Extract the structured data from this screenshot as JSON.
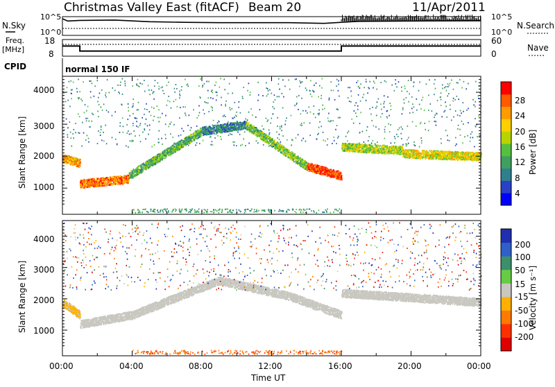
{
  "header": {
    "radar_name": "Christmas Valley East (fitACF)",
    "beam": "Beam 20",
    "date": "11/Apr/2011"
  },
  "panels": {
    "nsky": {
      "label": "N.Sky",
      "ticks": [
        "10^5",
        "10^0"
      ]
    },
    "nsearch": {
      "label": "N.Search",
      "ticks": [
        "10^5",
        "10^0"
      ]
    },
    "freq": {
      "label_line1": "Freq.",
      "label_line2": "[MHz]",
      "ticks": [
        "18",
        "8"
      ]
    },
    "nave": {
      "label": "Nave",
      "ticks": [
        "60",
        "0"
      ]
    },
    "cpid": {
      "label": "CPID",
      "value": "normal 150 IF"
    }
  },
  "power_panel": {
    "ylabel": "Slant Range [km]",
    "yticks": [
      "4000",
      "3000",
      "2000",
      "1000"
    ],
    "colorbar_label": "Power [dB]",
    "colorbar_ticks": [
      "28",
      "24",
      "20",
      "16",
      "12",
      "8",
      "4"
    ],
    "colors": [
      "#0000ff",
      "#2a40c8",
      "#2f7f8f",
      "#3f9f5f",
      "#55c040",
      "#b8d400",
      "#ffd000",
      "#ff9a00",
      "#ff5a00",
      "#ff0000"
    ]
  },
  "velocity_panel": {
    "ylabel": "Slant Range [km]",
    "yticks": [
      "4000",
      "3000",
      "2000",
      "1000"
    ],
    "colorbar_label": "Velocity [m s⁻¹]",
    "colorbar_ticks": [
      "200",
      "100",
      "50",
      "15",
      "-15",
      "-50",
      "-100",
      "-200"
    ],
    "colors": [
      "#1f2fb0",
      "#2f5fc8",
      "#3c8f6a",
      "#66cc44",
      "#c8c8c0",
      "#ffb000",
      "#ff7a00",
      "#ff3000",
      "#e00000"
    ]
  },
  "xaxis": {
    "label": "Time UT",
    "ticks": [
      "00:00",
      "04:00",
      "08:00",
      "12:00",
      "16:00",
      "20:00",
      "00:00"
    ]
  },
  "chart_data": [
    {
      "type": "line",
      "name": "N.Sky / N.Search",
      "x_hours": [
        0,
        0.3,
        1,
        3,
        5,
        7,
        9,
        11,
        13,
        15,
        16,
        17,
        20,
        24
      ],
      "log10_nsky": [
        4.8,
        4.1,
        4.3,
        4.4,
        3.9,
        3.7,
        3.6,
        3.6,
        3.6,
        3.4,
        3.7,
        4.0,
        4.1,
        4.2
      ],
      "yrange": [
        "10^0",
        "10^5"
      ]
    },
    {
      "type": "line",
      "name": "Freq. / Nave",
      "x_hours": [
        0,
        1,
        1,
        16,
        16,
        24
      ],
      "freq_mhz": [
        14.2,
        14.2,
        10.9,
        10.9,
        14.2,
        14.2
      ],
      "freq_range": [
        8,
        18
      ],
      "nave_range": [
        0,
        60
      ]
    },
    {
      "type": "heatmap",
      "name": "Power",
      "x_range_hours": [
        0,
        24
      ],
      "y_range_km": [
        180,
        4500
      ],
      "value_range_db": [
        0,
        30
      ],
      "bands": [
        {
          "x": [
            0.0,
            1.0
          ],
          "y_start": 1950,
          "y_end": 1800,
          "value": 22
        },
        {
          "x": [
            1.0,
            3.8
          ],
          "y_start": 1150,
          "y_end": 1300,
          "value": 24
        },
        {
          "x": [
            3.8,
            8.0
          ],
          "y_start": 1400,
          "y_end": 2800,
          "value": 12
        },
        {
          "x": [
            8.0,
            10.5
          ],
          "y_start": 2800,
          "y_end": 3000,
          "value": 8
        },
        {
          "x": [
            10.5,
            14.0
          ],
          "y_start": 3000,
          "y_end": 1700,
          "value": 14
        },
        {
          "x": [
            14.0,
            16.0
          ],
          "y_start": 1700,
          "y_end": 1400,
          "value": 26
        },
        {
          "x": [
            16.0,
            19.5
          ],
          "y_start": 2300,
          "y_end": 2200,
          "value": 16
        },
        {
          "x": [
            19.5,
            24.0
          ],
          "y_start": 2100,
          "y_end": 2000,
          "value": 18
        }
      ]
    },
    {
      "type": "heatmap",
      "name": "Velocity",
      "x_range_hours": [
        0,
        24
      ],
      "y_range_km": [
        180,
        4500
      ],
      "value_range_ms": [
        -200,
        200
      ],
      "bands": [
        {
          "x": [
            0.0,
            1.0
          ],
          "y_start": 1900,
          "y_end": 1500,
          "value": -20
        },
        {
          "x": [
            1.0,
            4.0
          ],
          "y_start": 1200,
          "y_end": 1500,
          "value": 0
        },
        {
          "x": [
            4.0,
            9.0
          ],
          "y_start": 1500,
          "y_end": 2600,
          "value": 0
        },
        {
          "x": [
            9.0,
            13.0
          ],
          "y_start": 2600,
          "y_end": 2100,
          "value": 0
        },
        {
          "x": [
            13.0,
            16.0
          ],
          "y_start": 2100,
          "y_end": 1500,
          "value": 0
        },
        {
          "x": [
            16.0,
            21.5
          ],
          "y_start": 2200,
          "y_end": 2000,
          "value": 0
        },
        {
          "x": [
            21.5,
            24.0
          ],
          "y_start": 2000,
          "y_end": 1900,
          "value": 0
        }
      ]
    }
  ]
}
